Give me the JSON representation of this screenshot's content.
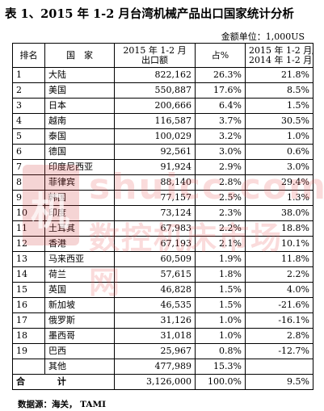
{
  "title": "表 1、2015 年 1-2 月台湾机械产品出口国家统计分析",
  "unit": "金额单位：1,000US",
  "headers": {
    "rank": "排名",
    "country": "国　家",
    "amount_line1": "2015 年 1-2 月",
    "amount_line2": "出口额",
    "share": "占%",
    "change_line1": "2015 年 1-2 月/",
    "change_line2": "2014 年 1-2 月"
  },
  "rows": [
    {
      "rank": "1",
      "country": "大陆",
      "amount": "822,162",
      "share": "26.3%",
      "change": "21.8%"
    },
    {
      "rank": "2",
      "country": "美国",
      "amount": "550,887",
      "share": "17.6%",
      "change": "8.5%"
    },
    {
      "rank": "3",
      "country": "日本",
      "amount": "200,666",
      "share": "6.4%",
      "change": "1.5%"
    },
    {
      "rank": "4",
      "country": "越南",
      "amount": "116,587",
      "share": "3.7%",
      "change": "30.5%"
    },
    {
      "rank": "5",
      "country": "泰国",
      "amount": "100,029",
      "share": "3.2%",
      "change": "1.0%"
    },
    {
      "rank": "6",
      "country": "德国",
      "amount": "92,561",
      "share": "3.0%",
      "change": "0.6%"
    },
    {
      "rank": "7",
      "country": "印度尼西亚",
      "amount": "91,924",
      "share": "2.9%",
      "change": "3.0%"
    },
    {
      "rank": "8",
      "country": "菲律宾",
      "amount": "88,140",
      "share": "2.8%",
      "change": "29.4%"
    },
    {
      "rank": "9",
      "country": "韩国",
      "amount": "77,157",
      "share": "2.5%",
      "change": "1.3%"
    },
    {
      "rank": "10",
      "country": "印度",
      "amount": "73,124",
      "share": "2.3%",
      "change": "38.0%"
    },
    {
      "rank": "11",
      "country": "土耳其",
      "amount": "67,983",
      "share": "2.2%",
      "change": "18.8%"
    },
    {
      "rank": "12",
      "country": "香港",
      "amount": "67,193",
      "share": "2.1%",
      "change": "10.1%"
    },
    {
      "rank": "13",
      "country": "马来西亚",
      "amount": "60,509",
      "share": "1.9%",
      "change": "11.8%"
    },
    {
      "rank": "14",
      "country": "荷兰",
      "amount": "57,615",
      "share": "1.8%",
      "change": "2.2%"
    },
    {
      "rank": "15",
      "country": "英国",
      "amount": "46,828",
      "share": "1.5%",
      "change": "4.0%"
    },
    {
      "rank": "16",
      "country": "新加坡",
      "amount": "46,535",
      "share": "1.5%",
      "change": "-21.6%"
    },
    {
      "rank": "17",
      "country": "俄罗斯",
      "amount": "31,126",
      "share": "1.0%",
      "change": "-16.1%"
    },
    {
      "rank": "18",
      "country": "墨西哥",
      "amount": "31,018",
      "share": "1.0%",
      "change": "2.8%"
    },
    {
      "rank": "19",
      "country": "巴西",
      "amount": "25,967",
      "share": "0.8%",
      "change": "-12.7%"
    },
    {
      "rank": "",
      "country": "其他",
      "amount": "477,989",
      "share": "15.3%",
      "change": ""
    }
  ],
  "total": {
    "label": "合 计",
    "amount": "3,126,000",
    "share": "100.0%",
    "change": "9.5%"
  },
  "source": "数据源：海关， TAMI",
  "watermark": {
    "url": "shuicc.com",
    "cn": "数控机床市场网",
    "logo": "机"
  },
  "colors": {
    "watermark": "#e05a5a"
  }
}
